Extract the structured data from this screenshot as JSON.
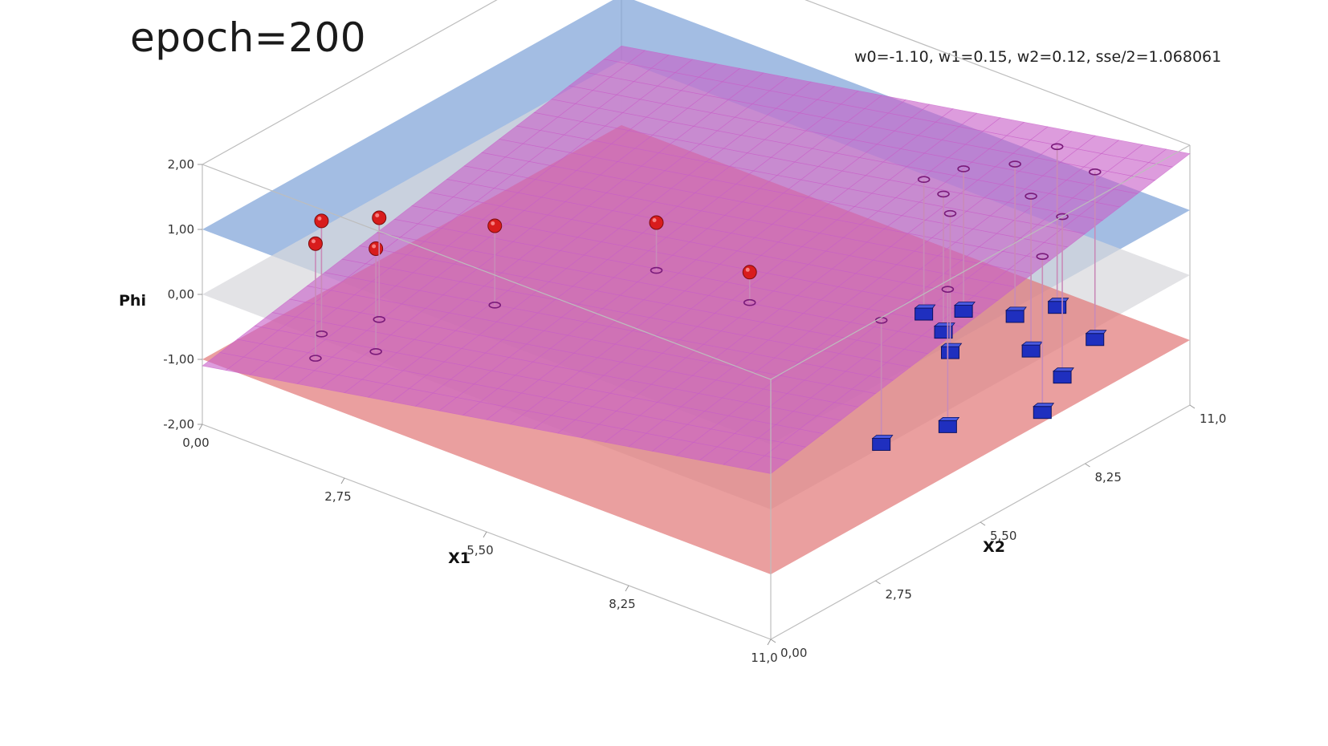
{
  "title": "epoch=200",
  "params_text": "w0=-1.10, w1=0.15, w2=0.12, sse/2=1.068061",
  "chart_data": {
    "type": "scatter",
    "subtype": "3d-surface-scatter",
    "xlabel": "X1",
    "ylabel": "X2",
    "zlabel": "Phi",
    "xlim": [
      0,
      11
    ],
    "ylim": [
      0,
      11
    ],
    "zlim": [
      -2,
      2
    ],
    "x_ticks": [
      "0,00",
      "2,75",
      "5,50",
      "8,25",
      "11,0"
    ],
    "y_ticks": [
      "0,00",
      "2,75",
      "5,50",
      "8,25",
      "11,0"
    ],
    "z_ticks": [
      "2,00",
      "1,00",
      "0,00",
      "-1,00",
      "-2,00"
    ],
    "weights": {
      "w0": -1.1,
      "w1": 0.15,
      "w2": 0.12
    },
    "sse_half": 1.068061,
    "planes": [
      {
        "name": "",
        "z": 1,
        "color": "#7fa3d8"
      },
      {
        "name": "",
        "z": 0,
        "color": "#d8d8dc"
      },
      {
        "name": "",
        "z": -1,
        "color": "#e27a7a"
      }
    ],
    "decision_surface_color": "#c860c8",
    "series": [
      {
        "name": "",
        "marker": "sphere",
        "color": "#d81c1c",
        "target": 1,
        "points": [
          [
            1.2,
            1.5
          ],
          [
            1.6,
            0.8
          ],
          [
            2.4,
            1.3
          ],
          [
            1.8,
            2.2
          ],
          [
            3.3,
            3.2
          ],
          [
            5.1,
            5.0
          ],
          [
            7.2,
            4.6
          ]
        ]
      },
      {
        "name": "",
        "marker": "cube",
        "color": "#1f2fbf",
        "target": -1,
        "points": [
          [
            8.5,
            9.8
          ],
          [
            8.8,
            10.5
          ],
          [
            9.9,
            10.0
          ],
          [
            10.3,
            8.6
          ],
          [
            7.8,
            9.4
          ],
          [
            8.0,
            8.6
          ],
          [
            9.4,
            9.0
          ],
          [
            10.8,
            7.4
          ],
          [
            7.4,
            8.9
          ],
          [
            8.5,
            8.1
          ],
          [
            9.6,
            4.8
          ],
          [
            10.0,
            6.0
          ]
        ]
      }
    ]
  }
}
